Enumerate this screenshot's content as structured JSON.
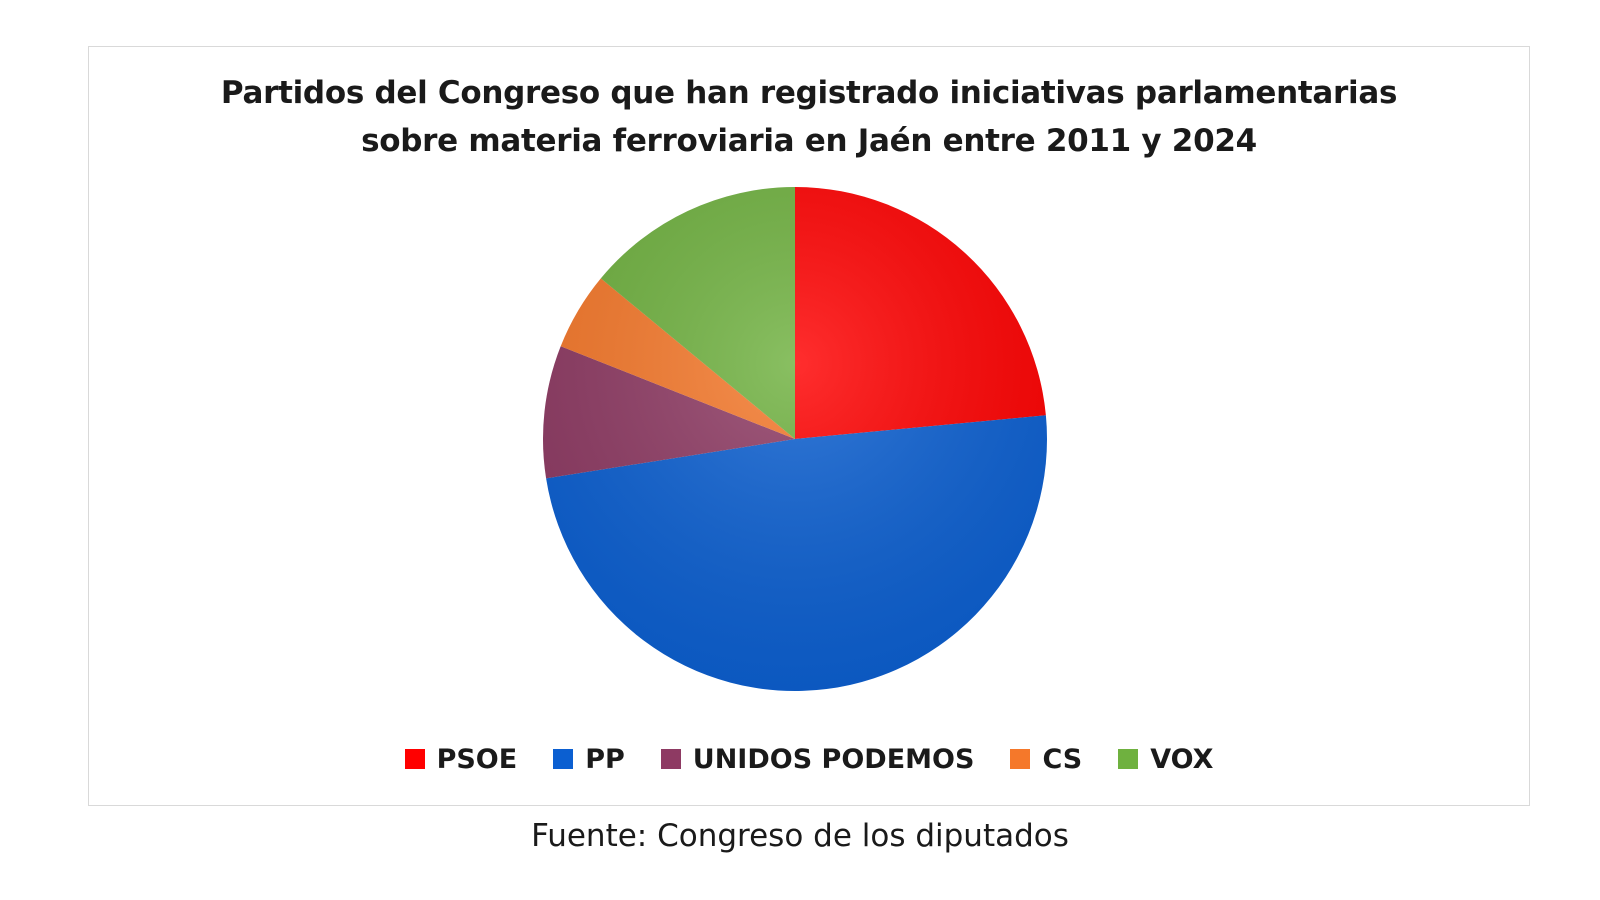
{
  "chart_data": {
    "type": "pie",
    "title_lines": [
      "Partidos del Congreso que han registrado iniciativas parlamentarias",
      "sobre materia ferroviaria en Jaén entre 2011 y 2024"
    ],
    "slices": [
      {
        "label": "PSOE",
        "value": 23.5,
        "color": "#ff0000"
      },
      {
        "label": "PP",
        "value": 49.0,
        "color": "#0b5fd1"
      },
      {
        "label": "UNIDOS PODEMOS",
        "value": 8.5,
        "color": "#8e3a63"
      },
      {
        "label": "CS",
        "value": 5.0,
        "color": "#f5782a"
      },
      {
        "label": "VOX",
        "value": 14.0,
        "color": "#6fb13f"
      }
    ],
    "start_angle": "12 o'clock",
    "direction": "clockwise",
    "legend_position": "bottom"
  },
  "source": "Fuente: Congreso de los diputados"
}
